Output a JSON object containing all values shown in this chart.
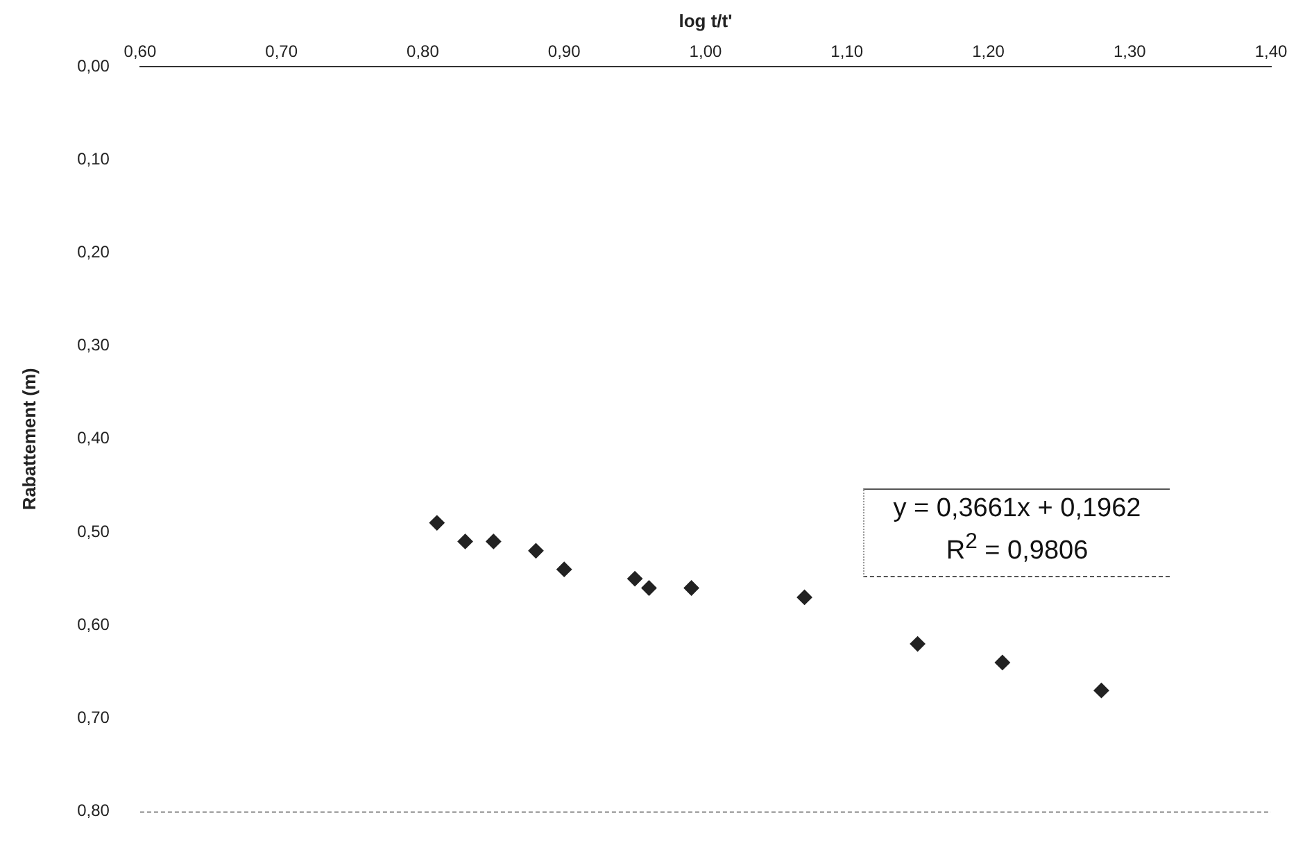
{
  "chart_data": {
    "type": "scatter",
    "xlabel": "log t/t'",
    "ylabel": "Rabattement (m)",
    "x": [
      0.81,
      0.83,
      0.85,
      0.88,
      0.9,
      0.95,
      0.96,
      0.99,
      1.07,
      1.15,
      1.21,
      1.28
    ],
    "series": [
      {
        "color": "#222222",
        "values": [
          0.49,
          0.51,
          0.51,
          0.52,
          0.54,
          0.55,
          0.56,
          0.56,
          0.57,
          0.62,
          0.64,
          0.67
        ]
      }
    ],
    "xlim": [
      0.6,
      1.4
    ],
    "xticks": [
      {
        "value": 0.6,
        "label": "0,60"
      },
      {
        "value": 0.7,
        "label": "0,70"
      },
      {
        "value": 0.8,
        "label": "0,80"
      },
      {
        "value": 0.9,
        "label": "0,90"
      },
      {
        "value": 1.0,
        "label": "1,00"
      },
      {
        "value": 1.1,
        "label": "1,10"
      },
      {
        "value": 1.2,
        "label": "1,20"
      },
      {
        "value": 1.3,
        "label": "1,30"
      },
      {
        "value": 1.4,
        "label": "1,40"
      }
    ],
    "ylim": [
      0.8,
      0.0
    ],
    "yticks": [
      {
        "value": 0.0,
        "label": "0,00"
      },
      {
        "value": 0.1,
        "label": "0,10"
      },
      {
        "value": 0.2,
        "label": "0,20"
      },
      {
        "value": 0.3,
        "label": "0,30"
      },
      {
        "value": 0.4,
        "label": "0,40"
      },
      {
        "value": 0.5,
        "label": "0,50"
      },
      {
        "value": 0.6,
        "label": "0,60"
      },
      {
        "value": 0.7,
        "label": "0,70"
      },
      {
        "value": 0.8,
        "label": "0,80"
      }
    ],
    "annotations": [
      "y = 0,3661x + 0,1962",
      "R$^{2}$ = 0,9806"
    ],
    "marker": "diamond",
    "grid": false,
    "legend": false
  }
}
